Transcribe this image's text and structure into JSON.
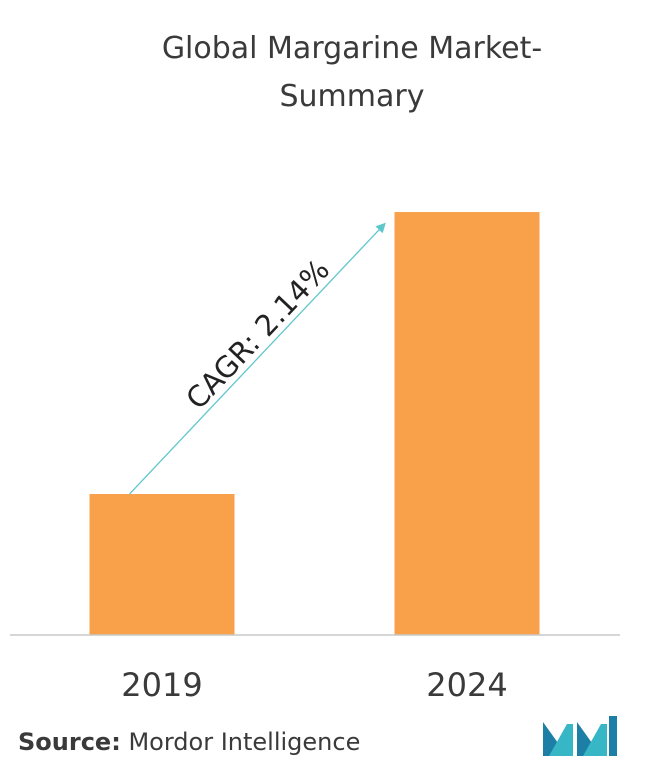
{
  "chart_data": {
    "type": "bar",
    "title_lines": [
      "Global Margarine Market-",
      "Summary"
    ],
    "categories": [
      "2019",
      "2024"
    ],
    "values": [
      1,
      3
    ],
    "value_note": "relative heights only; no numeric axis shown",
    "ylim": [
      0,
      3.05
    ],
    "grid": false,
    "legend": "none",
    "annotation": "CAGR: 2.14%",
    "bar_color": "#F9A04A",
    "arrow_color": "#5EC7CC",
    "baseline_color": "#c8c8c8"
  },
  "source": {
    "label": "Source:",
    "text": "Mordor Intelligence"
  },
  "logo": {
    "icon": "mordor-intelligence-logo",
    "colors": [
      "#1E7FA6",
      "#37B6C6"
    ]
  }
}
